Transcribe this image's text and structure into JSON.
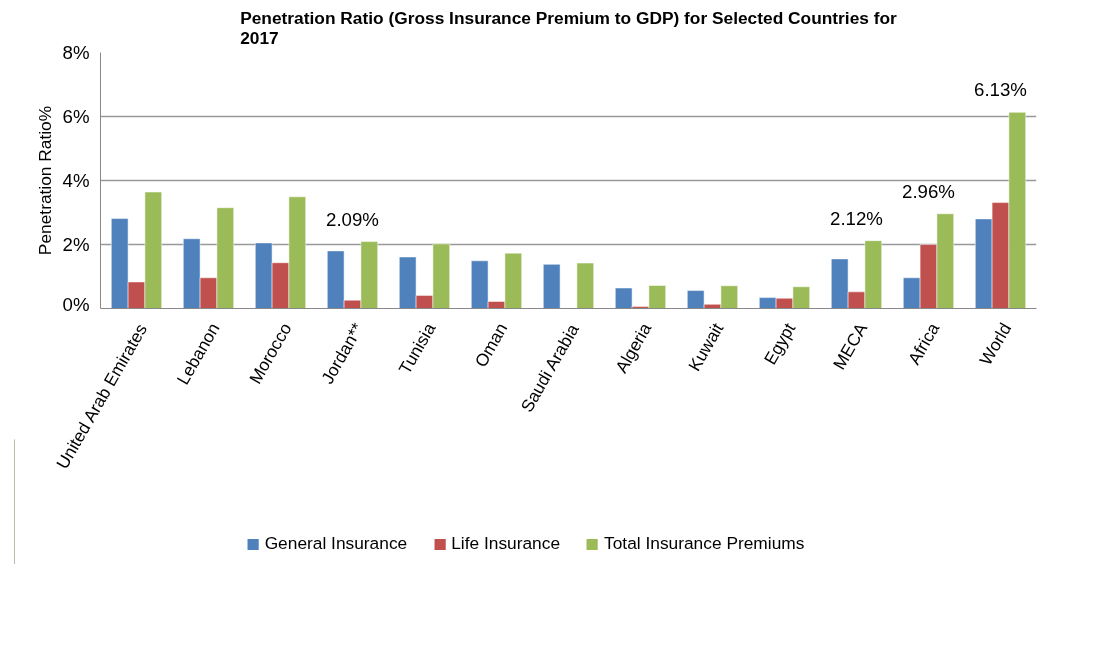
{
  "chart_data": {
    "type": "bar",
    "title": "Penetration Ratio (Gross Insurance Premium to GDP) for Selected Countries for 2017",
    "ylabel": "Penetration Ratio%",
    "categories": [
      "United Arab Emirates",
      "Lebanon",
      "Morocco",
      "Jordan**",
      "Tunisia",
      "Oman",
      "Saudi Arabia",
      "Algeria",
      "Kuwait",
      "Egypt",
      "MECA",
      "Africa",
      "World"
    ],
    "series": [
      {
        "name": "General Insurance",
        "color": "#4f81bd",
        "values": [
          2.81,
          2.18,
          2.05,
          1.8,
          1.61,
          1.49,
          1.38,
          0.64,
          0.56,
          0.34,
          1.55,
          0.96,
          2.8
        ]
      },
      {
        "name": "Life Insurance",
        "color": "#c0504d",
        "values": [
          0.83,
          0.96,
          1.43,
          0.26,
          0.41,
          0.22,
          null,
          0.06,
          0.13,
          0.32,
          0.52,
          2.0,
          3.31
        ]
      },
      {
        "name": "Total Insurance Premiums",
        "color": "#9bbb59",
        "values": [
          3.64,
          3.15,
          3.49,
          2.09,
          2.02,
          1.73,
          1.42,
          0.72,
          0.71,
          0.68,
          2.12,
          2.96,
          6.13
        ],
        "value_labels": [
          null,
          null,
          null,
          "2.09%",
          null,
          null,
          null,
          null,
          null,
          null,
          "2.12%",
          "2.96%",
          "6.13%"
        ]
      }
    ],
    "ylim": [
      0,
      8
    ],
    "yticks": [
      {
        "value": 0,
        "label": "0%"
      },
      {
        "value": 2,
        "label": "2%"
      },
      {
        "value": 4,
        "label": "4%"
      },
      {
        "value": 6,
        "label": "6%"
      },
      {
        "value": 8,
        "label": "8%"
      }
    ],
    "grid": "y",
    "legend": "bottom"
  }
}
